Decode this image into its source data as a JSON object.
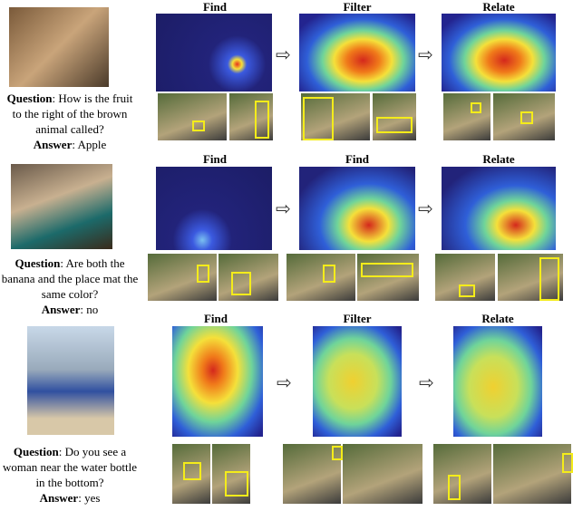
{
  "rows": [
    {
      "steps": [
        "Find",
        "Filter",
        "Relate"
      ],
      "question_label": "Question",
      "question": ": How is the fruit to the right of the brown animal called?",
      "answer_label": "Answer",
      "answer": ": Apple"
    },
    {
      "steps": [
        "Find",
        "Find",
        "Relate"
      ],
      "question_label": "Question",
      "question": ": Are both the banana and the place mat the same color?",
      "answer_label": "Answer",
      "answer": ": no"
    },
    {
      "steps": [
        "Find",
        "Filter",
        "Relate"
      ],
      "question_label": "Question",
      "question": ": Do you see a woman near the water bottle in the bottom?",
      "answer_label": "Answer",
      "answer": ": yes"
    }
  ]
}
